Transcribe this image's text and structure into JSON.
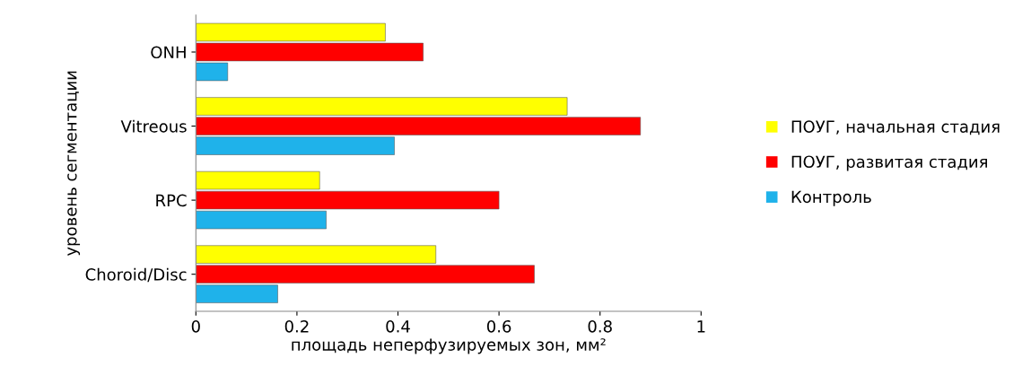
{
  "chart_data": {
    "type": "bar",
    "orientation": "horizontal",
    "ylabel": "уровень сегментации",
    "xlabel": "площадь неперфузируемых зон, мм²",
    "categories": [
      "ONH",
      "Vitreous",
      "RPC",
      "Choroid/Disc"
    ],
    "series": [
      {
        "name": "ПОУГ, начальная стадия",
        "color": "#ffff00",
        "values": [
          0.375,
          0.735,
          0.245,
          0.475
        ]
      },
      {
        "name": "ПОУГ, развитая стадия",
        "color": "#ff0000",
        "values": [
          0.45,
          0.88,
          0.6,
          0.67
        ]
      },
      {
        "name": "Контроль",
        "color": "#1fb2ea",
        "values": [
          0.063,
          0.393,
          0.258,
          0.162
        ]
      }
    ],
    "xlim": [
      0,
      1
    ],
    "xticks": [
      0,
      0.2,
      0.4,
      0.6,
      0.8,
      1
    ],
    "grid": false,
    "legend": "right"
  }
}
